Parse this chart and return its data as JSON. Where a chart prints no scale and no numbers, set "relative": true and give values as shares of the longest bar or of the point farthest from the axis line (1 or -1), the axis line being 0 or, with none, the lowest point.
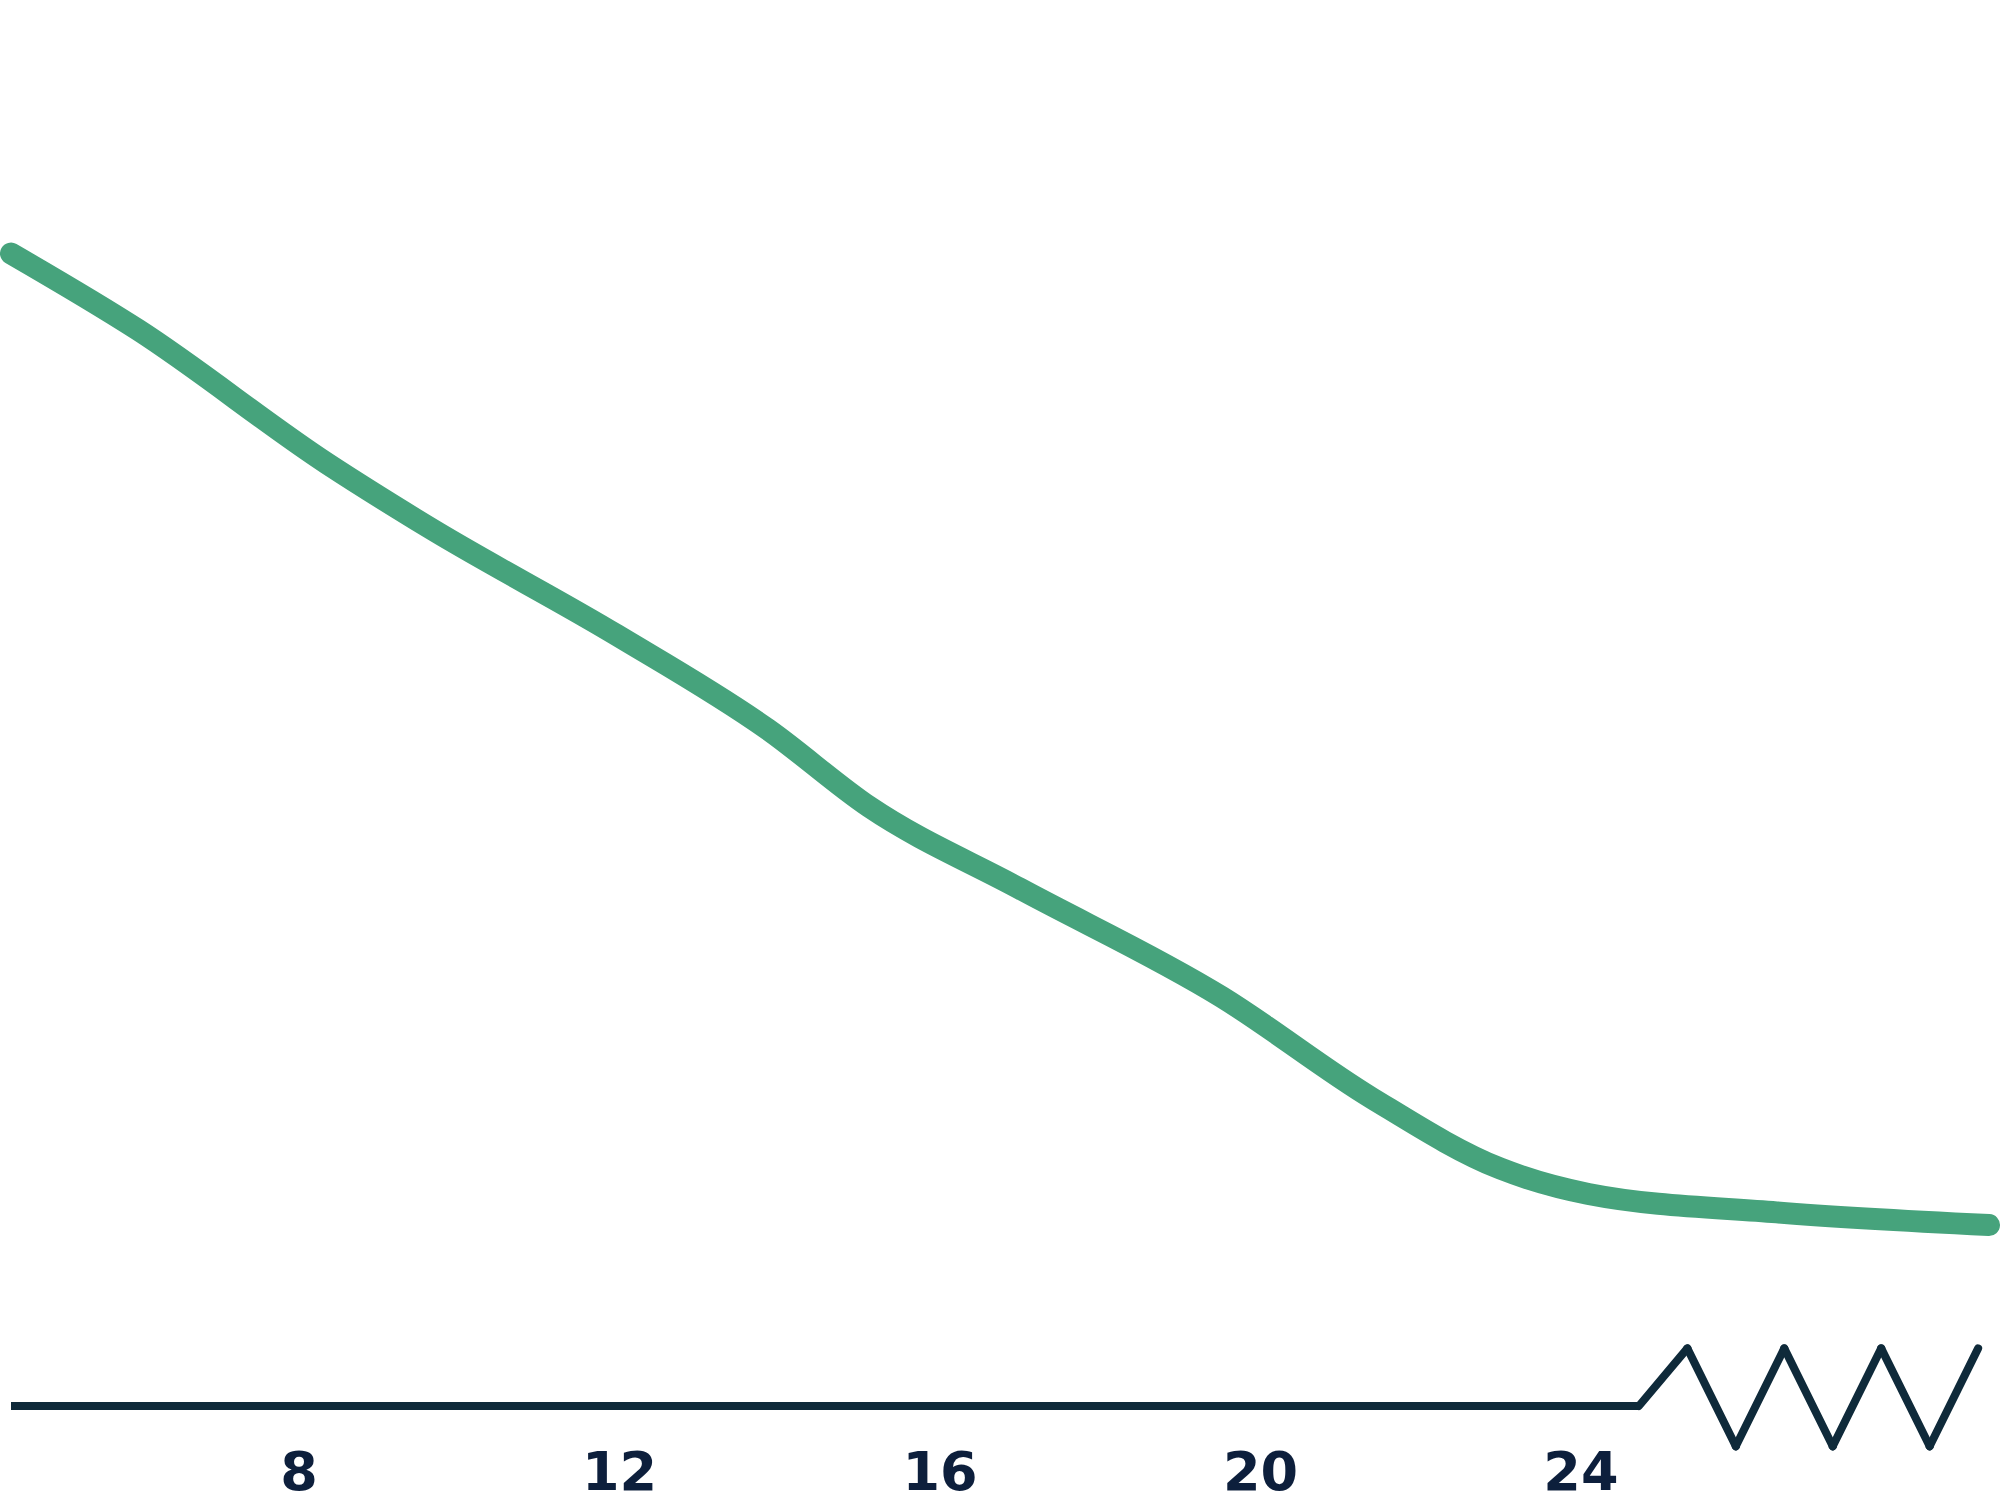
{
  "chart_data": {
    "type": "line",
    "relative": true,
    "x": [
      4.41,
      5.99,
      8.35,
      9.61,
      11.97,
      13.86,
      15.12,
      17.0,
      19.52,
      21.4,
      23.0,
      24.1,
      26.45,
      29.1
    ],
    "series": [
      {
        "color": "#46a37c",
        "values": [
          1.0,
          0.934,
          0.818,
          0.763,
          0.669,
          0.587,
          0.52,
          0.449,
          0.355,
          0.267,
          0.206,
          0.184,
          0.168,
          0.157
        ]
      }
    ],
    "xlim": [
      4.41,
      29.1
    ],
    "xticks": [
      8,
      12,
      16,
      20,
      24
    ],
    "grid": false,
    "marker": "none",
    "line_style": "solid"
  }
}
